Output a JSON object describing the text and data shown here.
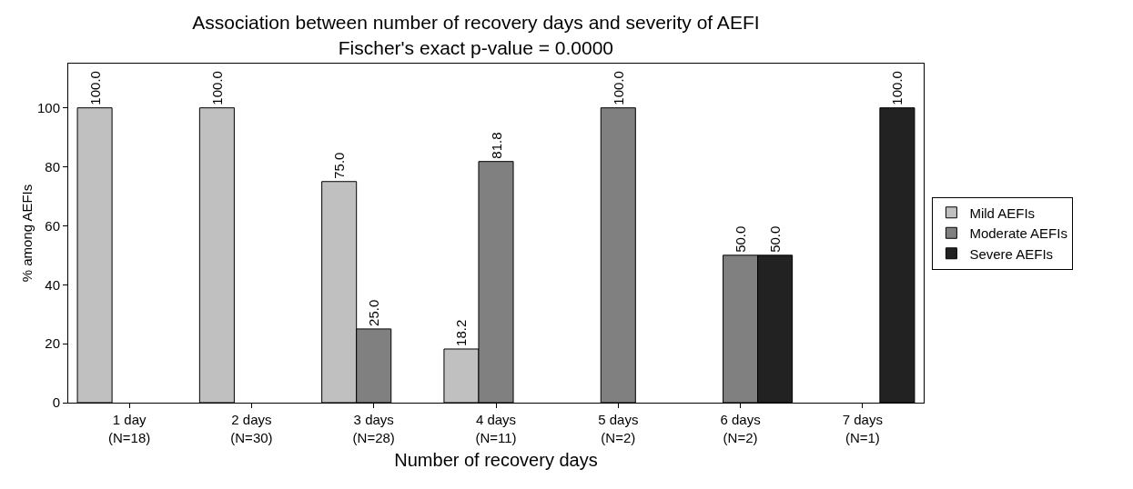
{
  "chart_data": {
    "type": "bar",
    "title": "Association between number of recovery days and severity of AEFI\nFischer's exact p-value = 0.0000",
    "xlabel": "Number of recovery days",
    "ylabel": "% among AEFIs",
    "categories": [
      "1 day\n(N=18)",
      "2 days\n(N=30)",
      "3 days\n(N=28)",
      "4 days\n(N=11)",
      "5 days\n(N=2)",
      "6 days\n(N=2)",
      "7 days\n(N=1)"
    ],
    "series": [
      {
        "name": "Mild AEFIs",
        "color": "#c0c0c0",
        "values": [
          100,
          100,
          75,
          18.2,
          null,
          null,
          null
        ],
        "value_labels": [
          "100.0",
          "100.0",
          "75.0",
          "18.2",
          null,
          null,
          null
        ]
      },
      {
        "name": "Moderate AEFIs",
        "color": "#808080",
        "values": [
          null,
          null,
          25,
          81.8,
          100,
          50,
          null
        ],
        "value_labels": [
          null,
          null,
          "25.0",
          "81.8",
          "100.0",
          "50.0",
          null
        ]
      },
      {
        "name": "Severe AEFIs",
        "color": "#222222",
        "values": [
          null,
          null,
          null,
          null,
          null,
          50,
          100
        ],
        "value_labels": [
          null,
          null,
          null,
          null,
          null,
          "50.0",
          "100.0"
        ]
      }
    ],
    "ylim": [
      0,
      115
    ],
    "yticks": [
      0,
      20,
      40,
      60,
      80,
      100
    ],
    "grid": false,
    "legend": "right"
  }
}
